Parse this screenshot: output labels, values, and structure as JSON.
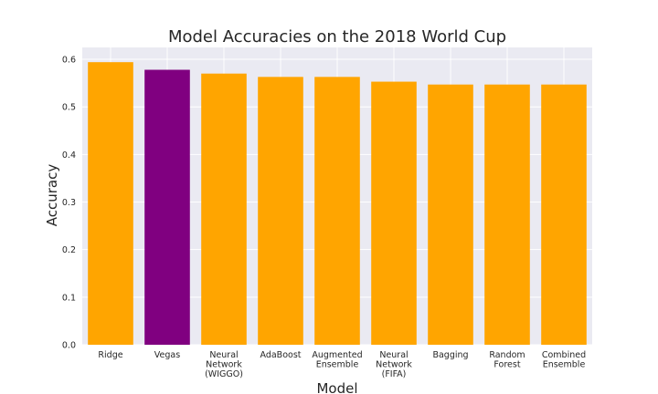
{
  "chart_data": {
    "type": "bar",
    "title": "Model Accuracies on the 2018 World Cup",
    "xlabel": "Model",
    "ylabel": "Accuracy",
    "ylim": [
      0,
      0.625
    ],
    "yticks": [
      "0.0",
      "0.1",
      "0.2",
      "0.3",
      "0.4",
      "0.5",
      "0.6"
    ],
    "grid": true,
    "categories": [
      "Ridge",
      "Vegas",
      "Neural Network (WIGGO)",
      "AdaBoost",
      "Augmented Ensemble",
      "Neural Network (FIFA)",
      "Bagging",
      "Random Forest",
      "Combined Ensemble"
    ],
    "category_lines": [
      [
        "Ridge"
      ],
      [
        "Vegas"
      ],
      [
        "Neural",
        "Network",
        "(WIGGO)"
      ],
      [
        "AdaBoost"
      ],
      [
        "Augmented",
        "Ensemble"
      ],
      [
        "Neural",
        "Network",
        "(FIFA)"
      ],
      [
        "Bagging"
      ],
      [
        "Random",
        "Forest"
      ],
      [
        "Combined",
        "Ensemble"
      ]
    ],
    "values": [
      0.594,
      0.578,
      0.57,
      0.563,
      0.563,
      0.553,
      0.547,
      0.547,
      0.547
    ],
    "colors": [
      "#FFA500",
      "#800080",
      "#FFA500",
      "#FFA500",
      "#FFA500",
      "#FFA500",
      "#FFA500",
      "#FFA500",
      "#FFA500"
    ],
    "background": "#EAEAF2",
    "gridline_color": "#FFFFFF"
  }
}
